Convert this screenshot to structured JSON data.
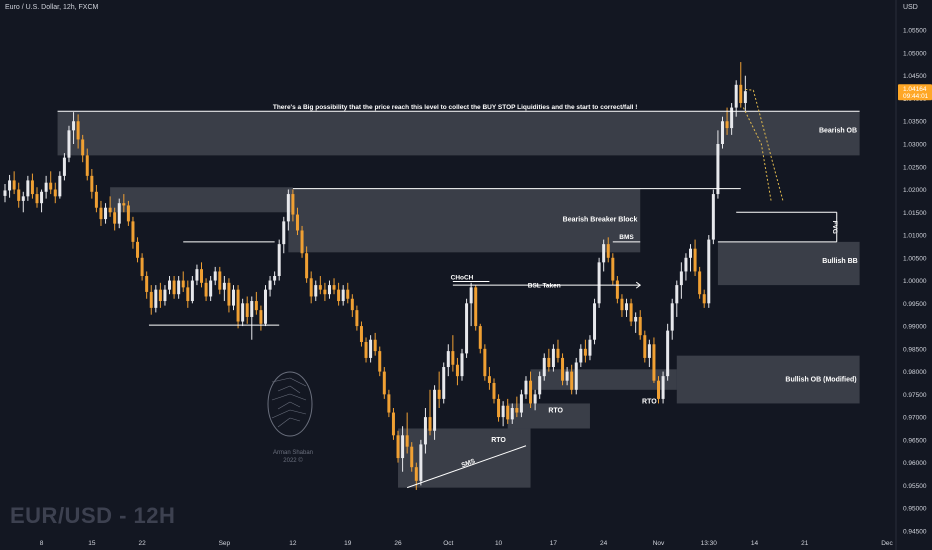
{
  "header": {
    "title": "Euro / U.S. Dollar, 12h, FXCM",
    "currency": "USD"
  },
  "watermark": "EUR/USD - 12H",
  "logo": {
    "name": "Arman Shaban",
    "year": "2022 ©"
  },
  "price_tag": {
    "price": "1.04164",
    "countdown": "09:44:01"
  },
  "colors": {
    "background": "#131722",
    "bull": "#e7e8ec",
    "bear": "#f0a033",
    "zone": "#555862",
    "price_tag": "#ffa726"
  },
  "chart_data": {
    "type": "candlestick",
    "symbol": "EUR/USD",
    "timeframe": "12h",
    "ylim": [
      0.943,
      1.059
    ],
    "y_ticks": [
      "1.05500",
      "1.05000",
      "1.04500",
      "1.04000",
      "1.03500",
      "1.03000",
      "1.02500",
      "1.02000",
      "1.01500",
      "1.01000",
      "1.00500",
      "1.00000",
      "0.99500",
      "0.99000",
      "0.98500",
      "0.98000",
      "0.97500",
      "0.97000",
      "0.96500",
      "0.96000",
      "0.95500",
      "0.95000",
      "0.94500"
    ],
    "x_ticks": [
      {
        "label": "8",
        "idx": 8
      },
      {
        "label": "15",
        "idx": 19
      },
      {
        "label": "22",
        "idx": 30
      },
      {
        "label": "Sep",
        "idx": 48
      },
      {
        "label": "12",
        "idx": 63
      },
      {
        "label": "19",
        "idx": 75
      },
      {
        "label": "26",
        "idx": 86
      },
      {
        "label": "Oct",
        "idx": 97
      },
      {
        "label": "10",
        "idx": 108
      },
      {
        "label": "17",
        "idx": 120
      },
      {
        "label": "24",
        "idx": 131
      },
      {
        "label": "Nov",
        "idx": 143
      },
      {
        "label": "13:30",
        "idx": 154
      },
      {
        "label": "14",
        "idx": 164
      },
      {
        "label": "21",
        "idx": 175
      },
      {
        "label": "Dec",
        "idx": 193
      }
    ],
    "candles": [
      [
        1.0186,
        1.0212,
        1.0172,
        1.0198
      ],
      [
        1.0198,
        1.0232,
        1.0182,
        1.022
      ],
      [
        1.022,
        1.024,
        1.019,
        1.02
      ],
      [
        1.02,
        1.0215,
        1.016,
        1.0175
      ],
      [
        1.0175,
        1.0195,
        1.015,
        1.0185
      ],
      [
        1.0185,
        1.023,
        1.0175,
        1.022
      ],
      [
        1.022,
        1.0235,
        1.018,
        1.019
      ],
      [
        1.019,
        1.0205,
        1.016,
        1.017
      ],
      [
        1.017,
        1.02,
        1.015,
        1.0195
      ],
      [
        1.0195,
        1.023,
        1.018,
        1.0215
      ],
      [
        1.0215,
        1.024,
        1.019,
        1.02
      ],
      [
        1.02,
        1.0215,
        1.017,
        1.0185
      ],
      [
        1.0185,
        1.024,
        1.018,
        1.023
      ],
      [
        1.023,
        1.028,
        1.022,
        1.027
      ],
      [
        1.027,
        1.034,
        1.026,
        1.033
      ],
      [
        1.033,
        1.037,
        1.03,
        1.035
      ],
      [
        1.035,
        1.0365,
        1.029,
        1.031
      ],
      [
        1.031,
        1.032,
        1.026,
        1.0275
      ],
      [
        1.0275,
        1.029,
        1.022,
        1.023
      ],
      [
        1.023,
        1.0245,
        1.018,
        1.0195
      ],
      [
        1.0195,
        1.021,
        1.015,
        1.016
      ],
      [
        1.016,
        1.0175,
        1.012,
        1.0135
      ],
      [
        1.0135,
        1.017,
        1.0125,
        1.016
      ],
      [
        1.016,
        1.0185,
        1.014,
        1.015
      ],
      [
        1.015,
        1.016,
        1.011,
        1.0125
      ],
      [
        1.0125,
        1.018,
        1.0115,
        1.017
      ],
      [
        1.017,
        1.019,
        1.015,
        1.0165
      ],
      [
        1.0165,
        1.0175,
        1.012,
        1.013
      ],
      [
        1.013,
        1.014,
        1.007,
        1.0085
      ],
      [
        1.0085,
        1.0095,
        1.004,
        1.005
      ],
      [
        1.005,
        1.006,
        1.0,
        1.001
      ],
      [
        1.001,
        1.002,
        0.996,
        0.9975
      ],
      [
        0.9975,
        0.999,
        0.9925,
        0.994
      ],
      [
        0.994,
        0.999,
        0.993,
        0.998
      ],
      [
        0.998,
        0.9995,
        0.994,
        0.9955
      ],
      [
        0.9955,
        0.999,
        0.9945,
        0.998
      ],
      [
        0.998,
        1.001,
        0.997,
        1.0
      ],
      [
        1.0,
        1.001,
        0.996,
        0.997
      ],
      [
        0.997,
        1.001,
        0.996,
        1.0
      ],
      [
        1.0,
        1.002,
        0.9975,
        0.9985
      ],
      [
        0.9985,
        1.0,
        0.994,
        0.9955
      ],
      [
        0.9955,
        1.001,
        0.995,
        1.0
      ],
      [
        1.0,
        1.0035,
        0.999,
        1.0025
      ],
      [
        1.0025,
        1.004,
        0.9985,
        0.9995
      ],
      [
        0.9995,
        1.0005,
        0.9955,
        0.9965
      ],
      [
        0.9965,
        1.001,
        0.9955,
        1.0
      ],
      [
        1.0,
        1.003,
        0.999,
        1.002
      ],
      [
        1.002,
        1.003,
        0.997,
        0.998
      ],
      [
        0.998,
        1.001,
        0.9955,
        0.9995
      ],
      [
        0.9995,
        1.0005,
        0.993,
        0.9945
      ],
      [
        0.9945,
        0.999,
        0.9935,
        0.998
      ],
      [
        0.998,
        0.999,
        0.9895,
        0.991
      ],
      [
        0.991,
        0.996,
        0.99,
        0.995
      ],
      [
        0.995,
        0.9965,
        0.9905,
        0.992
      ],
      [
        0.992,
        0.9965,
        0.987,
        0.9955
      ],
      [
        0.9955,
        0.9975,
        0.9925,
        0.9935
      ],
      [
        0.9935,
        0.9945,
        0.989,
        0.9905
      ],
      [
        0.9905,
        0.999,
        0.99,
        0.998
      ],
      [
        0.998,
        1.001,
        0.9965,
        1.0
      ],
      [
        1.0,
        1.002,
        0.999,
        1.001
      ],
      [
        1.001,
        1.009,
        1.0,
        1.008
      ],
      [
        1.008,
        1.014,
        1.006,
        1.013
      ],
      [
        1.013,
        1.02,
        1.011,
        1.019
      ],
      [
        1.019,
        1.02,
        1.013,
        1.0145
      ],
      [
        1.0145,
        1.016,
        1.01,
        1.011
      ],
      [
        1.011,
        1.012,
        1.005,
        1.006
      ],
      [
        1.006,
        1.0075,
        0.9995,
        1.0005
      ],
      [
        1.0005,
        1.002,
        0.995,
        0.9965
      ],
      [
        0.9965,
        1.0,
        0.9955,
        0.999
      ],
      [
        0.999,
        1.001,
        0.997,
        0.998
      ],
      [
        0.998,
        0.9995,
        0.9955,
        0.997
      ],
      [
        0.997,
        1.0,
        0.996,
        0.999
      ],
      [
        0.999,
        1.0005,
        0.997,
        0.998
      ],
      [
        0.998,
        0.9995,
        0.9945,
        0.9955
      ],
      [
        0.9955,
        0.999,
        0.9945,
        0.998
      ],
      [
        0.998,
        0.9995,
        0.995,
        0.996
      ],
      [
        0.996,
        0.997,
        0.992,
        0.9935
      ],
      [
        0.9935,
        0.9945,
        0.989,
        0.99
      ],
      [
        0.99,
        0.991,
        0.9855,
        0.9865
      ],
      [
        0.9865,
        0.9875,
        0.982,
        0.983
      ],
      [
        0.983,
        0.988,
        0.982,
        0.987
      ],
      [
        0.987,
        0.9885,
        0.9835,
        0.9845
      ],
      [
        0.9845,
        0.9855,
        0.979,
        0.98
      ],
      [
        0.98,
        0.981,
        0.974,
        0.975
      ],
      [
        0.975,
        0.976,
        0.97,
        0.971
      ],
      [
        0.971,
        0.972,
        0.965,
        0.966
      ],
      [
        0.966,
        0.967,
        0.96,
        0.961
      ],
      [
        0.961,
        0.968,
        0.958,
        0.966
      ],
      [
        0.966,
        0.971,
        0.962,
        0.9635
      ],
      [
        0.9635,
        0.9645,
        0.958,
        0.959
      ],
      [
        0.959,
        0.96,
        0.954,
        0.956
      ],
      [
        0.956,
        0.965,
        0.955,
        0.964
      ],
      [
        0.964,
        0.972,
        0.962,
        0.97
      ],
      [
        0.97,
        0.976,
        0.966,
        0.967
      ],
      [
        0.967,
        0.977,
        0.965,
        0.976
      ],
      [
        0.976,
        0.98,
        0.972,
        0.974
      ],
      [
        0.974,
        0.982,
        0.973,
        0.981
      ],
      [
        0.981,
        0.986,
        0.979,
        0.9845
      ],
      [
        0.9845,
        0.988,
        0.98,
        0.9815
      ],
      [
        0.9815,
        0.983,
        0.977,
        0.979
      ],
      [
        0.979,
        0.985,
        0.978,
        0.984
      ],
      [
        0.984,
        0.996,
        0.983,
        0.995
      ],
      [
        0.995,
        0.9995,
        0.99,
        0.9985
      ],
      [
        0.9985,
        0.999,
        0.989,
        0.99
      ],
      [
        0.99,
        0.9905,
        0.984,
        0.985
      ],
      [
        0.985,
        0.986,
        0.978,
        0.979
      ],
      [
        0.979,
        0.981,
        0.976,
        0.9775
      ],
      [
        0.9775,
        0.9785,
        0.973,
        0.974
      ],
      [
        0.974,
        0.975,
        0.969,
        0.97
      ],
      [
        0.97,
        0.9735,
        0.968,
        0.9725
      ],
      [
        0.9725,
        0.974,
        0.9685,
        0.9695
      ],
      [
        0.9695,
        0.973,
        0.9685,
        0.972
      ],
      [
        0.972,
        0.9745,
        0.97,
        0.971
      ],
      [
        0.971,
        0.976,
        0.97,
        0.975
      ],
      [
        0.975,
        0.979,
        0.974,
        0.978
      ],
      [
        0.978,
        0.98,
        0.972,
        0.973
      ],
      [
        0.973,
        0.976,
        0.9715,
        0.975
      ],
      [
        0.975,
        0.98,
        0.974,
        0.979
      ],
      [
        0.979,
        0.984,
        0.978,
        0.983
      ],
      [
        0.983,
        0.985,
        0.98,
        0.981
      ],
      [
        0.981,
        0.986,
        0.98,
        0.985
      ],
      [
        0.985,
        0.987,
        0.982,
        0.983
      ],
      [
        0.983,
        0.984,
        0.977,
        0.978
      ],
      [
        0.978,
        0.981,
        0.977,
        0.98
      ],
      [
        0.98,
        0.9815,
        0.975,
        0.976
      ],
      [
        0.976,
        0.983,
        0.975,
        0.982
      ],
      [
        0.982,
        0.986,
        0.981,
        0.985
      ],
      [
        0.985,
        0.987,
        0.982,
        0.9835
      ],
      [
        0.9835,
        0.988,
        0.9825,
        0.987
      ],
      [
        0.987,
        0.996,
        0.986,
        0.995
      ],
      [
        0.995,
        1.005,
        0.994,
        1.004
      ],
      [
        1.004,
        1.009,
        1.002,
        1.008
      ],
      [
        1.008,
        1.0095,
        1.004,
        1.005
      ],
      [
        1.005,
        1.006,
        0.999,
        1.0
      ],
      [
        1.0,
        1.001,
        0.995,
        0.996
      ],
      [
        0.996,
        0.997,
        0.992,
        0.9935
      ],
      [
        0.9935,
        0.996,
        0.992,
        0.995
      ],
      [
        0.995,
        0.996,
        0.99,
        0.991
      ],
      [
        0.991,
        0.993,
        0.9885,
        0.992
      ],
      [
        0.992,
        0.9935,
        0.987,
        0.988
      ],
      [
        0.988,
        0.989,
        0.982,
        0.983
      ],
      [
        0.983,
        0.987,
        0.981,
        0.986
      ],
      [
        0.986,
        0.9875,
        0.9775,
        0.978
      ],
      [
        0.978,
        0.979,
        0.973,
        0.974
      ],
      [
        0.974,
        0.98,
        0.973,
        0.979
      ],
      [
        0.979,
        0.9905,
        0.978,
        0.989
      ],
      [
        0.989,
        0.996,
        0.987,
        0.995
      ],
      [
        0.995,
        1.0,
        0.992,
        0.999
      ],
      [
        0.999,
        1.004,
        0.996,
        1.002
      ],
      [
        1.002,
        1.006,
        1.0,
        1.005
      ],
      [
        1.005,
        1.008,
        1.002,
        1.007
      ],
      [
        1.007,
        1.009,
        1.001,
        1.002
      ],
      [
        1.002,
        1.003,
        0.996,
        0.997
      ],
      [
        0.997,
        0.998,
        0.994,
        0.995
      ],
      [
        0.995,
        1.01,
        0.994,
        1.009
      ],
      [
        1.009,
        1.02,
        1.008,
        1.019
      ],
      [
        1.019,
        1.033,
        1.018,
        1.03
      ],
      [
        1.03,
        1.036,
        1.029,
        1.035
      ],
      [
        1.035,
        1.038,
        1.032,
        1.0335
      ],
      [
        1.0335,
        1.039,
        1.032,
        1.038
      ],
      [
        1.038,
        1.044,
        1.036,
        1.043
      ],
      [
        1.043,
        1.048,
        1.038,
        1.039
      ],
      [
        1.039,
        1.045,
        1.037,
        1.0416
      ]
    ],
    "annotations": {
      "main_text": "There's a Big possibility that the price reach this level to collect the BUY STOP Liquidities and the start to correct/fall !",
      "zones": [
        "Bearish OB",
        "Bearish Breaker Block",
        "Bullish BB",
        "Bullish OB (Modified)"
      ],
      "labels": [
        "CHoCH",
        "BSL Taken",
        "BMS",
        "RTO",
        "RTO",
        "RTO",
        "SMS",
        "FVG"
      ]
    }
  }
}
